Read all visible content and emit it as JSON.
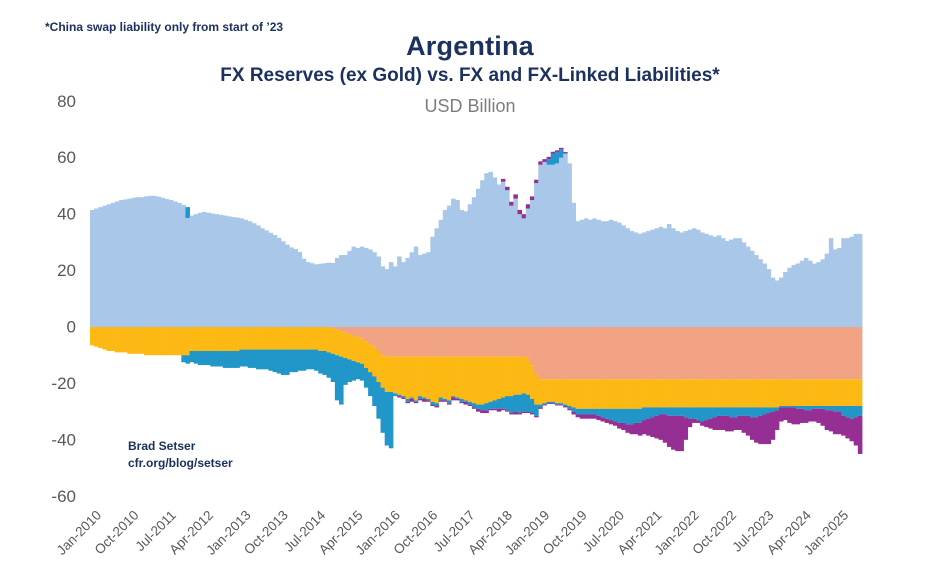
{
  "page": {
    "background": "#ffffff"
  },
  "annotations": {
    "footnote": "*China swap liability only from start of ’23",
    "attribution_line1": "Brad Setser",
    "attribution_line2": "cfr.org/blog/setser"
  },
  "header": {
    "title": "Argentina",
    "subtitle": "FX Reserves (ex Gold) vs. FX and FX-Linked Liabilities*",
    "units": "USD Billion"
  },
  "colors": {
    "navy_text": "#1b3160",
    "axis_label_gray": "#595959",
    "units_gray": "#7d7d7d",
    "reserves_lightblue": "#a9c7e8",
    "liability_yellow": "#fdb913",
    "liability_teal": "#2196c8",
    "liability_salmon": "#f1a384",
    "liability_purple": "#952f94"
  },
  "chart_data": {
    "type": "bar",
    "stacked": true,
    "grid": false,
    "legend": "none",
    "title": "Argentina",
    "subtitle": "FX Reserves (ex Gold) vs. FX and FX-Linked Liabilities*",
    "units": "USD Billion",
    "x_start_month": "Jan-2010",
    "x_end_month": "Jun-2025",
    "n_months": 186,
    "ylim": [
      -60,
      80
    ],
    "y_ticks": [
      80,
      60,
      40,
      20,
      0,
      -20,
      -40,
      -60
    ],
    "x_tick_labels": [
      "Jan-2010",
      "Oct-2010",
      "Jul-2011",
      "Apr-2012",
      "Jan-2013",
      "Oct-2013",
      "Jul-2014",
      "Apr-2015",
      "Jan-2016",
      "Oct-2016",
      "Jul-2017",
      "Apr-2018",
      "Jan-2019",
      "Oct-2019",
      "Jul-2020",
      "Apr-2021",
      "Jan-2022",
      "Oct-2022",
      "Jul-2023",
      "Apr-2024",
      "Jan-2025"
    ],
    "x_tick_month_indices": [
      0,
      9,
      18,
      27,
      36,
      45,
      54,
      63,
      72,
      81,
      90,
      99,
      108,
      117,
      126,
      135,
      144,
      153,
      162,
      171,
      180
    ],
    "series": [
      {
        "name": "fx-reserves-ex-gold",
        "color": "#a9c7e8",
        "direction": "positive",
        "values": [
          41.5,
          42,
          42.5,
          43,
          43.5,
          44,
          44.5,
          45,
          45.2,
          45.5,
          45.8,
          46,
          46,
          46.3,
          46.5,
          46.5,
          46.2,
          45.8,
          45.4,
          45,
          44.5,
          44,
          43.3,
          38.6,
          39.5,
          40,
          40.5,
          40.8,
          40.5,
          40.2,
          40,
          39.8,
          39.5,
          39.2,
          39,
          38.8,
          38.5,
          38,
          37.5,
          36.8,
          36,
          35,
          34.2,
          33.4,
          32.6,
          31.6,
          30.4,
          29.2,
          28.2,
          27.6,
          26.6,
          24.2,
          23,
          22.6,
          22.2,
          22.4,
          22.6,
          22.8,
          22.7,
          24.5,
          25.5,
          25.5,
          27,
          28.5,
          28,
          28.5,
          28,
          27.5,
          26.5,
          25,
          21.5,
          20.5,
          23,
          21.5,
          25,
          23,
          24.5,
          26.5,
          28.5,
          25.5,
          26,
          26.5,
          32,
          35,
          38,
          41.5,
          43,
          45.5,
          45,
          41.5,
          41,
          43.5,
          46,
          49,
          52,
          54.5,
          55,
          53,
          50.5,
          51.5,
          48.5,
          43,
          45.5,
          40,
          38.5,
          42,
          45,
          51,
          57.5,
          58.5,
          57.5,
          57.5,
          58,
          60,
          61.5,
          58,
          44,
          37.5,
          38,
          38.5,
          38,
          38.5,
          38,
          37.5,
          37.5,
          38,
          37.5,
          37,
          36,
          35,
          34,
          33.5,
          33,
          33.5,
          34,
          34.5,
          35,
          35.5,
          35,
          36.5,
          35,
          34,
          33.5,
          34,
          34.5,
          35,
          34.5,
          33.5,
          33,
          32.5,
          32,
          32.5,
          31.5,
          30.5,
          31,
          31.5,
          31.5,
          30,
          28.5,
          27,
          25.5,
          24,
          22.5,
          20.5,
          17.5,
          16.5,
          17.5,
          19.5,
          21,
          22,
          22.5,
          23.5,
          24.5,
          23.5,
          22.5,
          23,
          24,
          26,
          31.5,
          27.5,
          28,
          31.5,
          31.5,
          32,
          33,
          33
        ]
      },
      {
        "name": "positive-teal-segment",
        "color": "#2196c8",
        "direction": "positive",
        "values": {
          "runs": [
            [
              23,
              0
            ],
            [
              1,
              3.9
            ],
            [
              86,
              0
            ],
            [
              1,
              2
            ],
            [
              2,
              4
            ],
            [
              1,
              3
            ],
            [
              72,
              0
            ]
          ]
        }
      },
      {
        "name": "positive-purple-segment",
        "color": "#952f94",
        "direction": "positive",
        "values": {
          "runs": [
            [
              99,
              0
            ],
            [
              1,
              1
            ],
            [
              1,
              1.2
            ],
            [
              1,
              1.4
            ],
            [
              4,
              1.5
            ],
            [
              1,
              1.3
            ],
            [
              2,
              1.2
            ],
            [
              1,
              1
            ],
            [
              1,
              0.8
            ],
            [
              2,
              0.6
            ],
            [
              2,
              0.5
            ],
            [
              71,
              0
            ]
          ]
        }
      },
      {
        "name": "liability-salmon-swap",
        "color": "#f1a384",
        "direction": "negative",
        "values": {
          "runs": [
            [
              58,
              0
            ],
            [
              1,
              0.5
            ],
            [
              1,
              1
            ],
            [
              1,
              1.5
            ],
            [
              1,
              2
            ],
            [
              1,
              2.5
            ],
            [
              1,
              3
            ],
            [
              1,
              3.5
            ],
            [
              1,
              4
            ],
            [
              1,
              5
            ],
            [
              1,
              6
            ],
            [
              1,
              7
            ],
            [
              1,
              8.5
            ],
            [
              1,
              10
            ],
            [
              34,
              10.5
            ],
            [
              1,
              11
            ],
            [
              1,
              13.5
            ],
            [
              1,
              16.5
            ],
            [
              78,
              18.5
            ]
          ]
        }
      },
      {
        "name": "liability-yellow",
        "color": "#fdb913",
        "direction": "negative",
        "values": [
          6.5,
          7,
          7.5,
          8,
          8.5,
          8.5,
          9,
          9,
          9,
          9.5,
          9.5,
          9.5,
          9.5,
          10,
          10,
          10,
          10,
          10,
          10,
          10,
          10,
          10,
          10,
          10,
          8.5,
          8.5,
          8.5,
          8.5,
          8.5,
          8.5,
          8.5,
          8.5,
          8.5,
          8.5,
          8.5,
          8.5,
          8,
          8,
          8,
          8,
          8,
          8,
          8,
          8,
          8,
          8,
          8,
          8,
          8,
          8,
          8,
          8,
          8,
          8,
          8,
          8.5,
          8.5,
          9,
          9,
          9,
          9,
          9,
          9,
          9,
          9,
          9,
          9.5,
          10,
          10.5,
          11,
          11.5,
          12.5,
          12.5,
          13,
          13.5,
          14,
          15,
          14.5,
          15.5,
          14,
          14.5,
          15,
          16,
          16.5,
          14.5,
          15,
          15.5,
          14,
          14.5,
          15,
          15.5,
          16,
          16.5,
          17,
          17,
          16.5,
          16,
          15.5,
          15,
          14.5,
          14,
          14,
          13.5,
          13.5,
          13,
          13,
          12,
          11,
          9,
          8.5,
          8,
          8,
          8.5,
          8.5,
          9,
          9.5,
          10,
          10.5,
          10.5,
          10.5,
          10.5,
          10.5,
          10.5,
          10.5,
          10.5,
          10.5,
          10.5,
          10.5,
          10.5,
          10.5,
          10.5,
          10.5,
          10.5,
          10,
          10,
          10,
          10,
          10,
          10,
          10,
          10,
          10,
          10,
          10,
          10,
          10,
          10,
          10,
          10,
          10,
          10,
          10,
          10,
          10,
          10,
          10,
          10,
          10,
          10,
          10,
          10,
          10,
          10,
          10,
          10,
          10,
          9.5,
          9.5,
          9.5,
          9.5,
          9.5,
          9.5,
          9.5,
          9.5,
          9.5,
          9.5,
          9.5,
          9.5,
          9.5,
          9.5,
          9.5,
          9.5,
          9.5,
          9.5,
          9.5,
          9.5
        ]
      },
      {
        "name": "liability-teal",
        "color": "#2196c8",
        "direction": "negative",
        "values": [
          0,
          0,
          0,
          0,
          0,
          0,
          0,
          0,
          0,
          0,
          0,
          0,
          0,
          0,
          0,
          0,
          0,
          0,
          0,
          0,
          0,
          0,
          2.5,
          3,
          4,
          4.5,
          5,
          5,
          5,
          5.5,
          5.5,
          5.5,
          6,
          6,
          6,
          6,
          6,
          6,
          6.5,
          6.5,
          7,
          7,
          7,
          7.5,
          8,
          8.5,
          9,
          9,
          8,
          8,
          7.5,
          7.5,
          7,
          7,
          7.5,
          8,
          8.5,
          9,
          10,
          16,
          17,
          9.5,
          8,
          7,
          6,
          6,
          7,
          8.5,
          10.5,
          13,
          16,
          19,
          20,
          1,
          0.5,
          0.5,
          1,
          0.5,
          0.5,
          1,
          0.5,
          0.5,
          1,
          1,
          1,
          0.5,
          1,
          0.5,
          0.5,
          1,
          0.5,
          1,
          1.5,
          1.5,
          2,
          2.5,
          2.5,
          3,
          3.5,
          4,
          5,
          6,
          6,
          6.5,
          6.5,
          6,
          5,
          4,
          1,
          0.5,
          0.5,
          0.5,
          0.5,
          0.5,
          0.5,
          1,
          1.5,
          2,
          2,
          2,
          2,
          2,
          2.5,
          3,
          3.5,
          4,
          4.5,
          5,
          5,
          5.5,
          5.5,
          5,
          5,
          4.5,
          4,
          3.5,
          3,
          2.5,
          2.5,
          3,
          3,
          3,
          3,
          3.5,
          4,
          4,
          4.5,
          5,
          4.5,
          4,
          3.5,
          3,
          3,
          3,
          3.5,
          3.5,
          3,
          3,
          3,
          3.5,
          3.5,
          3,
          2.5,
          2,
          1.5,
          1,
          0.5,
          0.5,
          0.5,
          0.5,
          1,
          1,
          1.5,
          1.5,
          1,
          1,
          1,
          1.5,
          1.5,
          2,
          2,
          3.5,
          4,
          4.5,
          4,
          3.5
        ]
      },
      {
        "name": "liability-purple",
        "color": "#952f94",
        "direction": "negative",
        "values": [
          0,
          0,
          0,
          0,
          0,
          0,
          0,
          0,
          0,
          0,
          0,
          0,
          0,
          0,
          0,
          0,
          0,
          0,
          0,
          0,
          0,
          0,
          0,
          0,
          0,
          0,
          0,
          0,
          0,
          0,
          0,
          0,
          0,
          0,
          0,
          0,
          0,
          0,
          0,
          0,
          0,
          0,
          0,
          0,
          0,
          0,
          0,
          0,
          0,
          0,
          0,
          0,
          0,
          0,
          0,
          0,
          0,
          0,
          0,
          0,
          0,
          0,
          0,
          0,
          0,
          0,
          0,
          0,
          0,
          0,
          0,
          0,
          0,
          0,
          0.5,
          0.5,
          0.5,
          1,
          0.5,
          0.5,
          1,
          0.5,
          0.5,
          0.5,
          0.5,
          0.5,
          0.5,
          1,
          0.5,
          0.5,
          1,
          0.5,
          0.5,
          1,
          1,
          1,
          0.5,
          0.5,
          1,
          0.5,
          0.5,
          0.5,
          1,
          0.5,
          0.5,
          0.5,
          0.5,
          0.5,
          0.5,
          0.3,
          0.3,
          0.3,
          0.3,
          0.3,
          0.5,
          0.5,
          1,
          1,
          1.5,
          1.5,
          1.5,
          1.5,
          1.5,
          1.5,
          1.5,
          1.5,
          1.5,
          2,
          2.5,
          3,
          3.5,
          4,
          4.5,
          5,
          6,
          7,
          8,
          9,
          10,
          11,
          12,
          12.5,
          12.5,
          8,
          3,
          1.5,
          1,
          1.5,
          2.5,
          3.5,
          4.5,
          5,
          5,
          5.5,
          5,
          4.5,
          5,
          6,
          7,
          8,
          9,
          10,
          10.5,
          11,
          10,
          7,
          5,
          4.5,
          5.5,
          6,
          5.5,
          5,
          4.5,
          4,
          4.5,
          5,
          6,
          7,
          7.5,
          8,
          8,
          7,
          7.5,
          8,
          10,
          13.5
        ]
      }
    ]
  }
}
